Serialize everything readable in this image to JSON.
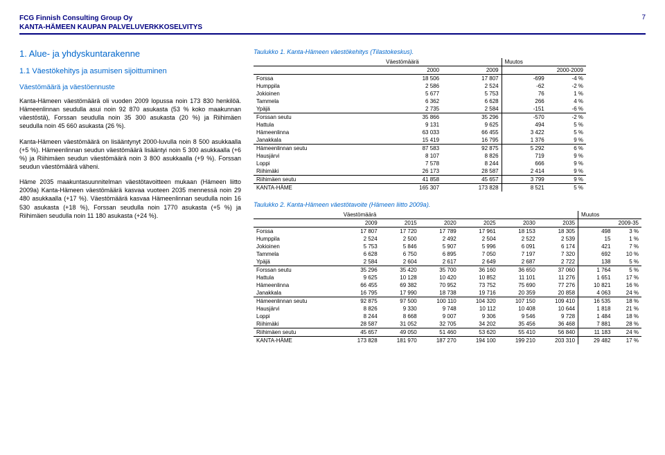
{
  "header": {
    "company": "FCG Finnish Consulting Group Oy",
    "report": "KANTA-HÄMEEN KAUPAN PALVELUVERKKOSELVITYS",
    "page": "7"
  },
  "left": {
    "section": "1. Alue- ja yhdyskuntarakenne",
    "subsection": "1.1 Väestökehitys ja asumisen sijoittuminen",
    "runhead": "Väestömäärä ja väestöennuste",
    "p1": "Kanta-Hämeen väestömäärä oli vuoden 2009 lopussa noin 173 830 henkilöä. Hämeenlinnan seudulla asui noin 92 870 asukasta (53 % koko maakunnan väestöstä), Forssan seudulla noin 35 300 asukasta (20 %) ja Riihimäen seudulla noin 45 660 asukasta (26 %).",
    "p2": "Kanta-Hämeen väestömäärä on lisääntynyt 2000-luvulla noin 8 500 asukkaalla (+5 %). Hämeenlinnan seudun väestömäärä lisääntyi noin 5 300 asukkaalla (+6 %) ja Riihimäen seudun väestömäärä noin 3 800 asukkaalla (+9 %). Forssan seudun väestömäärä väheni.",
    "p3": "Häme 2035 maakuntasuunnitelman väestötavoitteen mukaan (Hämeen liitto 2009a) Kanta-Hämeen väestömäärä kasvaa vuoteen 2035 mennessä noin 29 480 asukkaalla (+17 %). Väestömäärä kasvaa Hämeenlinnan seudulla noin 16 530 asukasta (+18 %), Forssan seudulla noin 1770 asukasta (+5 %) ja Riihimäen seudulla noin 11 180 asukasta (+24 %)."
  },
  "table1": {
    "caption": "Taulukko 1. Kanta-Hämeen väestökehitys (Tilastokeskus).",
    "head_vaesto": "Väestömäärä",
    "head_muutos": "Muutos",
    "years": {
      "a": "2000",
      "b": "2009",
      "c": "2000-2009"
    },
    "rows": [
      {
        "n": "Forssa",
        "a": "18 506",
        "b": "17 807",
        "c": "-699",
        "d": "-4 %",
        "t": "plain"
      },
      {
        "n": "Humppila",
        "a": "2 586",
        "b": "2 524",
        "c": "-62",
        "d": "-2 %",
        "t": "plain"
      },
      {
        "n": "Jokioinen",
        "a": "5 677",
        "b": "5 753",
        "c": "76",
        "d": "1 %",
        "t": "plain"
      },
      {
        "n": "Tammela",
        "a": "6 362",
        "b": "6 628",
        "c": "266",
        "d": "4 %",
        "t": "plain"
      },
      {
        "n": "Ypäjä",
        "a": "2 735",
        "b": "2 584",
        "c": "-151",
        "d": "-6 %",
        "t": "plain"
      },
      {
        "n": "Forssan seutu",
        "a": "35 866",
        "b": "35 296",
        "c": "-570",
        "d": "-2 %",
        "t": "grp"
      },
      {
        "n": "Hattula",
        "a": "9 131",
        "b": "9 625",
        "c": "494",
        "d": "5 %",
        "t": "plain"
      },
      {
        "n": "Hämeenlinna",
        "a": "63 033",
        "b": "66 455",
        "c": "3 422",
        "d": "5 %",
        "t": "plain"
      },
      {
        "n": "Janakkala",
        "a": "15 419",
        "b": "16 795",
        "c": "1 376",
        "d": "9 %",
        "t": "plain"
      },
      {
        "n": "Hämeenlinnan seutu",
        "a": "87 583",
        "b": "92 875",
        "c": "5 292",
        "d": "6 %",
        "t": "grp"
      },
      {
        "n": "Hausjärvi",
        "a": "8 107",
        "b": "8 826",
        "c": "719",
        "d": "9 %",
        "t": "plain"
      },
      {
        "n": "Loppi",
        "a": "7 578",
        "b": "8 244",
        "c": "666",
        "d": "9 %",
        "t": "plain"
      },
      {
        "n": "Riihimäki",
        "a": "26 173",
        "b": "28 587",
        "c": "2 414",
        "d": "9 %",
        "t": "plain"
      },
      {
        "n": "Riihimäen seutu",
        "a": "41 858",
        "b": "45 657",
        "c": "3 799",
        "d": "9 %",
        "t": "grp"
      },
      {
        "n": "KANTA-HÄME",
        "a": "165 307",
        "b": "173 828",
        "c": "8 521",
        "d": "5 %",
        "t": "grp"
      }
    ]
  },
  "table2": {
    "caption": "Taulukko 2. Kanta-Hämeen väestötavoite (Hämeen liitto 2009a).",
    "head_vaesto": "Väestömäärä",
    "head_muutos": "Muutos",
    "years": {
      "a": "2009",
      "b": "2015",
      "c": "2020",
      "d": "2025",
      "e": "2030",
      "f": "2035",
      "g": "2009-35"
    },
    "rows": [
      {
        "n": "Forssa",
        "a": "17 807",
        "b": "17 720",
        "c": "17 789",
        "d": "17 961",
        "e": "18 153",
        "f": "18 305",
        "g": "498",
        "h": "3 %",
        "t": "plain"
      },
      {
        "n": "Humppila",
        "a": "2 524",
        "b": "2 500",
        "c": "2 492",
        "d": "2 504",
        "e": "2 522",
        "f": "2 539",
        "g": "15",
        "h": "1 %",
        "t": "plain"
      },
      {
        "n": "Jokioinen",
        "a": "5 753",
        "b": "5 846",
        "c": "5 907",
        "d": "5 996",
        "e": "6 091",
        "f": "6 174",
        "g": "421",
        "h": "7 %",
        "t": "plain"
      },
      {
        "n": "Tammela",
        "a": "6 628",
        "b": "6 750",
        "c": "6 895",
        "d": "7 050",
        "e": "7 197",
        "f": "7 320",
        "g": "692",
        "h": "10 %",
        "t": "plain"
      },
      {
        "n": "Ypäjä",
        "a": "2 584",
        "b": "2 604",
        "c": "2 617",
        "d": "2 649",
        "e": "2 687",
        "f": "2 722",
        "g": "138",
        "h": "5 %",
        "t": "plain"
      },
      {
        "n": "Forssan seutu",
        "a": "35 296",
        "b": "35 420",
        "c": "35 700",
        "d": "36 160",
        "e": "36 650",
        "f": "37 060",
        "g": "1 764",
        "h": "5 %",
        "t": "grp"
      },
      {
        "n": "Hattula",
        "a": "9 625",
        "b": "10 128",
        "c": "10 420",
        "d": "10 852",
        "e": "11 101",
        "f": "11 276",
        "g": "1 651",
        "h": "17 %",
        "t": "plain"
      },
      {
        "n": "Hämeenlinna",
        "a": "66 455",
        "b": "69 382",
        "c": "70 952",
        "d": "73 752",
        "e": "75 690",
        "f": "77 276",
        "g": "10 821",
        "h": "16 %",
        "t": "plain"
      },
      {
        "n": "Janakkala",
        "a": "16 795",
        "b": "17 990",
        "c": "18 738",
        "d": "19 716",
        "e": "20 359",
        "f": "20 858",
        "g": "4 063",
        "h": "24 %",
        "t": "plain"
      },
      {
        "n": "Hämeenlinnan seutu",
        "a": "92 875",
        "b": "97 500",
        "c": "100 110",
        "d": "104 320",
        "e": "107 150",
        "f": "109 410",
        "g": "16 535",
        "h": "18 %",
        "t": "grp"
      },
      {
        "n": "Hausjärvi",
        "a": "8 826",
        "b": "9 330",
        "c": "9 748",
        "d": "10 112",
        "e": "10 408",
        "f": "10 644",
        "g": "1 818",
        "h": "21 %",
        "t": "plain"
      },
      {
        "n": "Loppi",
        "a": "8 244",
        "b": "8 668",
        "c": "9 007",
        "d": "9 306",
        "e": "9 546",
        "f": "9 728",
        "g": "1 484",
        "h": "18 %",
        "t": "plain"
      },
      {
        "n": "Riihimäki",
        "a": "28 587",
        "b": "31 052",
        "c": "32 705",
        "d": "34 202",
        "e": "35 456",
        "f": "36 468",
        "g": "7 881",
        "h": "28 %",
        "t": "plain"
      },
      {
        "n": "Riihimäen seutu",
        "a": "45 657",
        "b": "49 050",
        "c": "51 460",
        "d": "53 620",
        "e": "55 410",
        "f": "56 840",
        "g": "11 183",
        "h": "24 %",
        "t": "grp"
      },
      {
        "n": "KANTA-HÄME",
        "a": "173 828",
        "b": "181 970",
        "c": "187 270",
        "d": "194 100",
        "e": "199 210",
        "f": "203 310",
        "g": "29 482",
        "h": "17 %",
        "t": "grp"
      }
    ]
  }
}
